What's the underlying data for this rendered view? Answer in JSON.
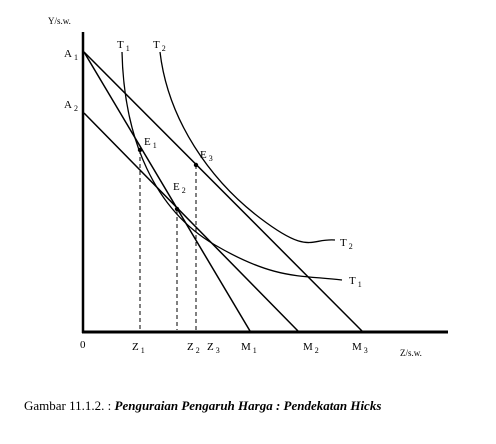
{
  "axes": {
    "y_label": "Y/s.w.",
    "x_label": "Z/s.w.",
    "origin": "0"
  },
  "labels": {
    "A1": {
      "main": "A",
      "sub": "1"
    },
    "A2": {
      "main": "A",
      "sub": "2"
    },
    "T1_top": {
      "main": "T",
      "sub": "1"
    },
    "T2_top": {
      "main": "T",
      "sub": "2"
    },
    "T1_right": {
      "main": "T",
      "sub": "1"
    },
    "T2_right": {
      "main": "T",
      "sub": "2"
    },
    "E1": {
      "main": "E",
      "sub": "1"
    },
    "E2": {
      "main": "E",
      "sub": "2"
    },
    "E3": {
      "main": "E",
      "sub": "3"
    },
    "Z1": {
      "main": "Z",
      "sub": "1"
    },
    "Z2": {
      "main": "Z",
      "sub": "2"
    },
    "Z3": {
      "main": "Z",
      "sub": "3"
    },
    "M1": {
      "main": "M",
      "sub": "1"
    },
    "M2": {
      "main": "M",
      "sub": "2"
    },
    "M3": {
      "main": "M",
      "sub": "3"
    }
  },
  "caption": {
    "prefix": "Gambar 11.1.2. :",
    "title": "Penguraian Pengaruh Harga : Pendekatan Hicks"
  }
}
